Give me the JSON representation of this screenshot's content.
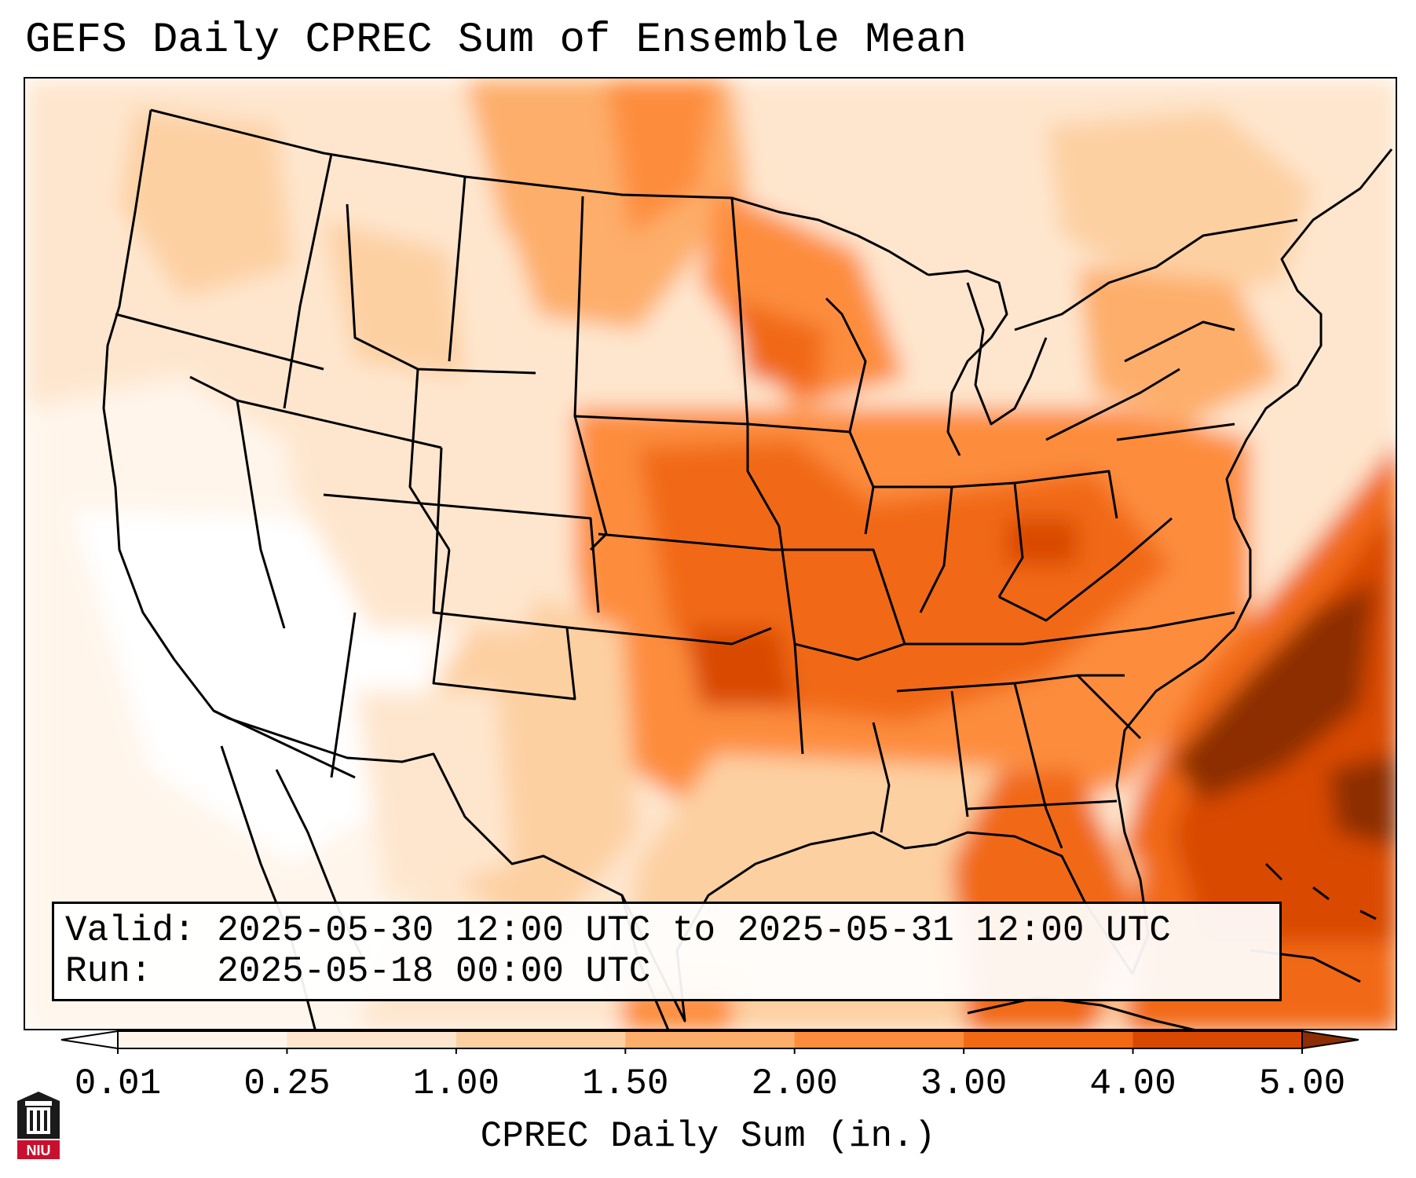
{
  "title": "GEFS Daily CPREC Sum of Ensemble Mean",
  "info": {
    "valid_label": "Valid:",
    "valid_value": "2025-05-30 12:00 UTC to 2025-05-31 12:00 UTC",
    "run_label": "Run:",
    "run_value": "2025-05-18 00:00 UTC"
  },
  "colorbar": {
    "label": "CPREC Daily Sum (in.)",
    "ticks": [
      "0.01",
      "0.25",
      "1.00",
      "1.50",
      "2.00",
      "3.00",
      "4.00",
      "5.00"
    ],
    "colors": [
      "#fff5eb",
      "#fee6ce",
      "#fdd0a2",
      "#fdae6b",
      "#fd8d3c",
      "#f16913",
      "#d94801",
      "#8c2d04"
    ],
    "extend": "both"
  },
  "logo": {
    "text": "NIU",
    "colors": {
      "dark": "#1a1a1a",
      "red": "#c8102e"
    }
  },
  "map": {
    "region": "CONUS",
    "colors": {
      "land_outline": "#000000",
      "ocean_no_precip": "#ffffff"
    }
  }
}
